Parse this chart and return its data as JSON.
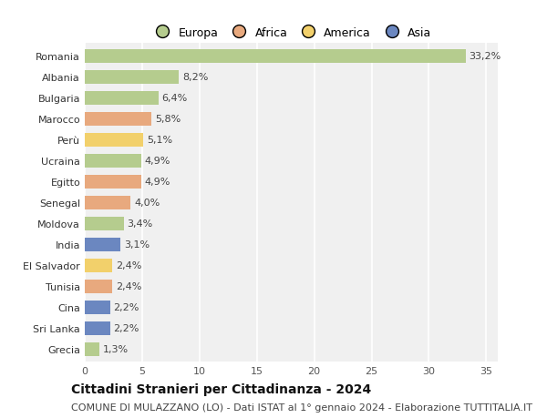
{
  "countries": [
    "Romania",
    "Albania",
    "Bulgaria",
    "Marocco",
    "Perù",
    "Ucraina",
    "Egitto",
    "Senegal",
    "Moldova",
    "India",
    "El Salvador",
    "Tunisia",
    "Cina",
    "Sri Lanka",
    "Grecia"
  ],
  "values": [
    33.2,
    8.2,
    6.4,
    5.8,
    5.1,
    4.9,
    4.9,
    4.0,
    3.4,
    3.1,
    2.4,
    2.4,
    2.2,
    2.2,
    1.3
  ],
  "labels": [
    "33,2%",
    "8,2%",
    "6,4%",
    "5,8%",
    "5,1%",
    "4,9%",
    "4,9%",
    "4,0%",
    "3,4%",
    "3,1%",
    "2,4%",
    "2,4%",
    "2,2%",
    "2,2%",
    "1,3%"
  ],
  "colors": [
    "#b5cc8e",
    "#b5cc8e",
    "#b5cc8e",
    "#e8a97e",
    "#f2d06b",
    "#b5cc8e",
    "#e8a97e",
    "#e8a97e",
    "#b5cc8e",
    "#6b87c0",
    "#f2d06b",
    "#e8a97e",
    "#6b87c0",
    "#6b87c0",
    "#b5cc8e"
  ],
  "legend_names": [
    "Europa",
    "Africa",
    "America",
    "Asia"
  ],
  "legend_colors": [
    "#b5cc8e",
    "#e8a97e",
    "#f2d06b",
    "#6b87c0"
  ],
  "title": "Cittadini Stranieri per Cittadinanza - 2024",
  "subtitle": "COMUNE DI MULAZZANO (LO) - Dati ISTAT al 1° gennaio 2024 - Elaborazione TUTTITALIA.IT",
  "xlim": [
    0,
    36
  ],
  "xticks": [
    0,
    5,
    10,
    15,
    20,
    25,
    30,
    35
  ],
  "plot_bg": "#f0f0f0",
  "fig_bg": "#ffffff",
  "grid_color": "#ffffff",
  "bar_height": 0.65,
  "title_fontsize": 10,
  "subtitle_fontsize": 8,
  "label_fontsize": 8,
  "tick_fontsize": 8,
  "legend_fontsize": 9
}
